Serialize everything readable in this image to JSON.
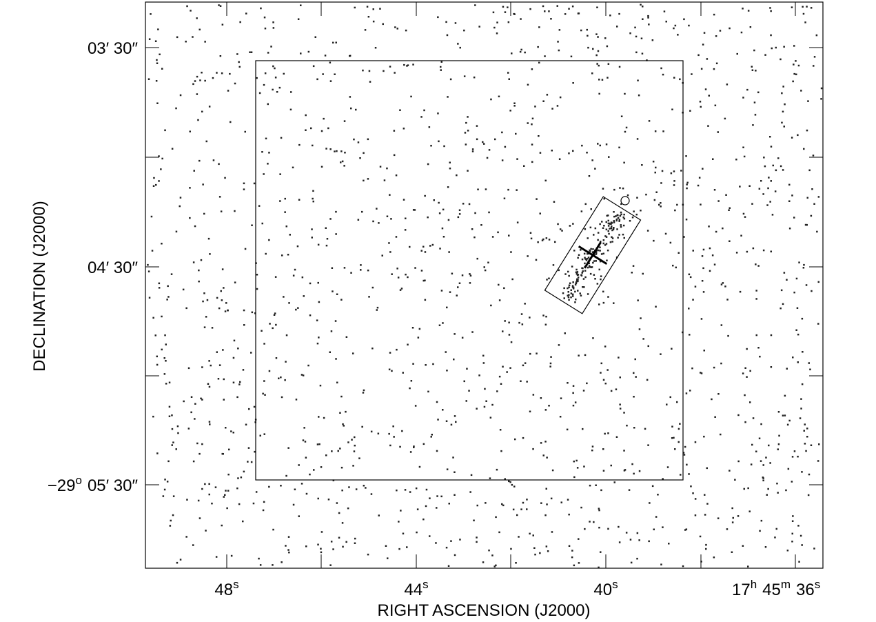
{
  "axes": {
    "x_label": "RIGHT ASCENSION (J2000)",
    "y_label": "DECLINATION (J2000)",
    "x_ticks": [
      {
        "text": "48",
        "sup": "s"
      },
      {
        "text": "44",
        "sup": "s"
      },
      {
        "text": "40",
        "sup": "s"
      },
      {
        "parts": [
          {
            "text": "17",
            "sup": "h"
          },
          {
            "text": "45",
            "sup": "m"
          },
          {
            "text": "36",
            "sup": "s"
          }
        ]
      }
    ],
    "y_ticks": [
      {
        "text": "03′ 30″"
      },
      {
        "text": "04′ 30″"
      },
      {
        "prefix": "−29",
        "sup": "o",
        "text": "05′ 30″"
      }
    ]
  }
}
